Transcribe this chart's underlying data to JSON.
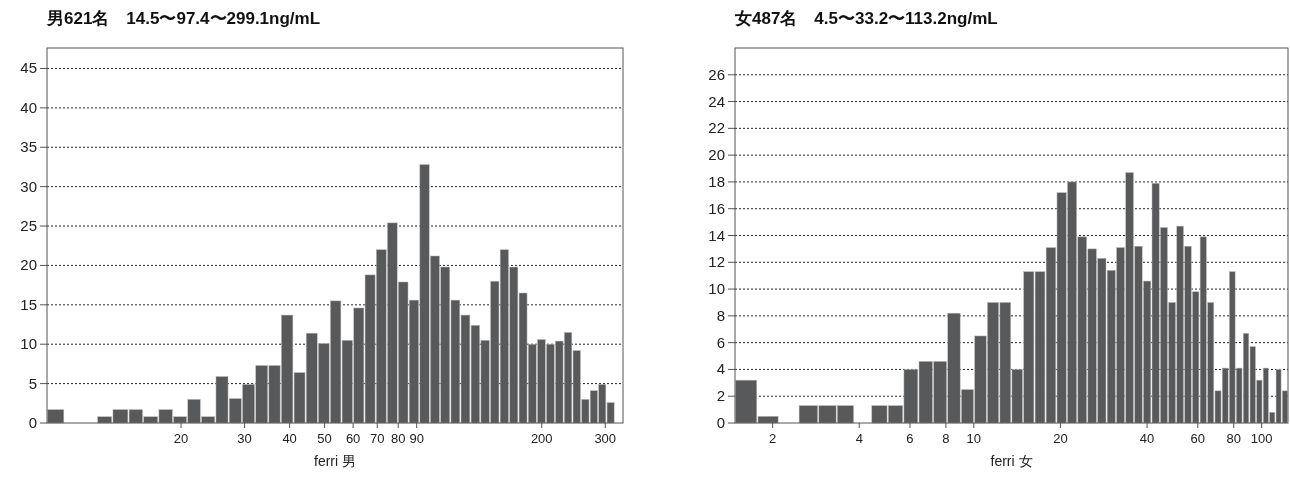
{
  "chart_data": [
    {
      "type": "histogram",
      "title": "男621名　14.5〜97.4〜299.1ng/mL",
      "xlabel": "ferri 男",
      "color": "#58595b",
      "log": "x",
      "grid": "y",
      "bins": [
        8.5,
        9.5,
        11.7,
        12.9,
        14.3,
        15.7,
        17.3,
        19.0,
        20.8,
        22.7,
        24.9,
        27.1,
        29.5,
        32.1,
        34.9,
        37.8,
        41.0,
        44.3,
        47.9,
        51.7,
        55.7,
        60.0,
        64.5,
        69.3,
        74.4,
        79.8,
        85.5,
        91.5,
        97.9,
        104.5,
        111.6,
        119.0,
        126.9,
        135.1,
        143.7,
        152.8,
        162.4,
        172.4,
        182.8,
        193.9,
        205.4,
        217.5,
        230.1,
        243.3,
        257.1,
        271.5,
        286.6,
        302.3,
        318.8
      ],
      "values": [
        1.7,
        0,
        0.8,
        1.7,
        1.7,
        0.8,
        1.7,
        0.8,
        3.0,
        0.8,
        5.9,
        3.1,
        4.9,
        7.3,
        7.3,
        13.7,
        6.4,
        11.4,
        10.1,
        15.5,
        10.5,
        14.6,
        18.8,
        22.0,
        25.4,
        17.9,
        15.6,
        32.8,
        21.2,
        19.8,
        15.6,
        13.7,
        12.4,
        10.5,
        18.0,
        22.0,
        19.8,
        16.5,
        10.0,
        10.6,
        10.0,
        10.4,
        11.5,
        9.2,
        3.0,
        4.1,
        4.9,
        2.6
      ],
      "xlim": [
        8.5,
        336
      ],
      "xticks": [
        20,
        30,
        40,
        50,
        60,
        70,
        80,
        90,
        200,
        300
      ],
      "ylim": [
        0,
        47.6
      ],
      "yticks": [
        0,
        5,
        10,
        15,
        20,
        25,
        30,
        35,
        40,
        45
      ]
    },
    {
      "type": "histogram",
      "title": "女487名　4.5〜33.2〜113.2ng/mL",
      "xlabel": "ferri 女",
      "color": "#58595b",
      "log": "x",
      "grid": "y",
      "bins": [
        1.48,
        1.77,
        2.1,
        2.46,
        2.88,
        3.34,
        3.84,
        4.4,
        5.02,
        5.69,
        6.42,
        7.22,
        8.08,
        9.01,
        10.02,
        11.1,
        12.26,
        13.5,
        14.83,
        16.25,
        17.75,
        19.36,
        21.06,
        22.87,
        24.78,
        26.8,
        28.93,
        31.18,
        33.55,
        36.04,
        38.66,
        41.41,
        44.29,
        47.31,
        50.47,
        53.78,
        57.24,
        60.85,
        64.61,
        68.53,
        72.62,
        76.88,
        81.3,
        85.91,
        90.69,
        95.65,
        100.8,
        106.1,
        111.7,
        117.4,
        123.5
      ],
      "values": [
        3.2,
        0.5,
        0,
        1.3,
        1.3,
        1.3,
        0,
        1.3,
        1.3,
        4.0,
        4.6,
        4.6,
        8.2,
        2.5,
        6.5,
        9.0,
        9.0,
        4.0,
        11.3,
        11.3,
        13.1,
        17.2,
        18.0,
        13.9,
        13.0,
        12.3,
        11.4,
        13.1,
        18.7,
        13.2,
        10.6,
        17.9,
        14.6,
        9.0,
        14.7,
        13.2,
        9.8,
        13.9,
        9.0,
        2.4,
        4.1,
        11.3,
        4.1,
        6.7,
        5.7,
        3.2,
        4.1,
        0.8,
        4.0,
        2.4
      ],
      "xlim": [
        1.48,
        123.5
      ],
      "xticks": [
        2,
        4,
        6,
        8,
        10,
        20,
        40,
        60,
        80,
        100
      ],
      "ylim": [
        0,
        28
      ],
      "yticks": [
        0,
        2,
        4,
        6,
        8,
        10,
        12,
        14,
        16,
        18,
        20,
        22,
        24,
        26
      ]
    }
  ]
}
